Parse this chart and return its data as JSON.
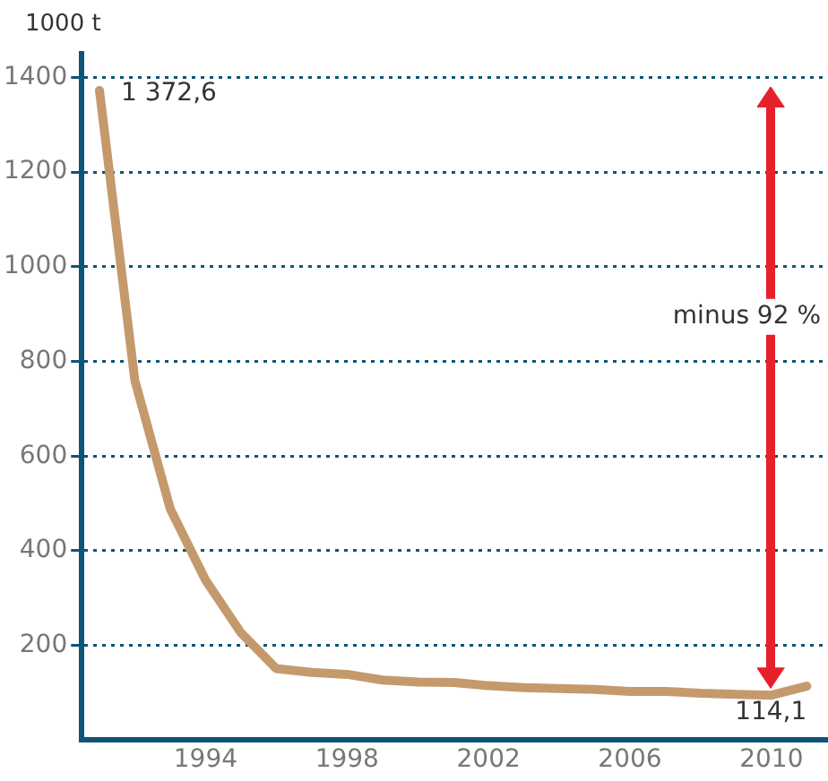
{
  "chart_data": {
    "type": "line",
    "ylabel": "1000 t",
    "x": [
      1991,
      1992,
      1993,
      1994,
      1995,
      1996,
      1997,
      1998,
      1999,
      2000,
      2001,
      2002,
      2003,
      2004,
      2005,
      2006,
      2007,
      2008,
      2009,
      2010,
      2011
    ],
    "series": [
      {
        "color": "#c49a6c",
        "values": [
          1372.6,
          760,
          489,
          338,
          227,
          151,
          143,
          139,
          127,
          123,
          122,
          115,
          111,
          109,
          107,
          103,
          103,
          99,
          97,
          95,
          114.1
        ],
        "value_labels": [
          "1 372,6",
          null,
          null,
          null,
          null,
          null,
          null,
          null,
          null,
          null,
          null,
          null,
          null,
          null,
          null,
          null,
          null,
          null,
          null,
          null,
          "114,1"
        ]
      }
    ],
    "xlim": [
      1990.5,
      2011.6
    ],
    "xticks": [
      1994,
      1998,
      2002,
      2006,
      2010
    ],
    "ylim": [
      0,
      1450
    ],
    "yticks": [
      200,
      400,
      600,
      800,
      1000,
      1200,
      1400
    ],
    "grid": "y",
    "legend": false,
    "marker": "none",
    "line_style": "solid",
    "annotations": [
      "minus 92 %"
    ]
  }
}
